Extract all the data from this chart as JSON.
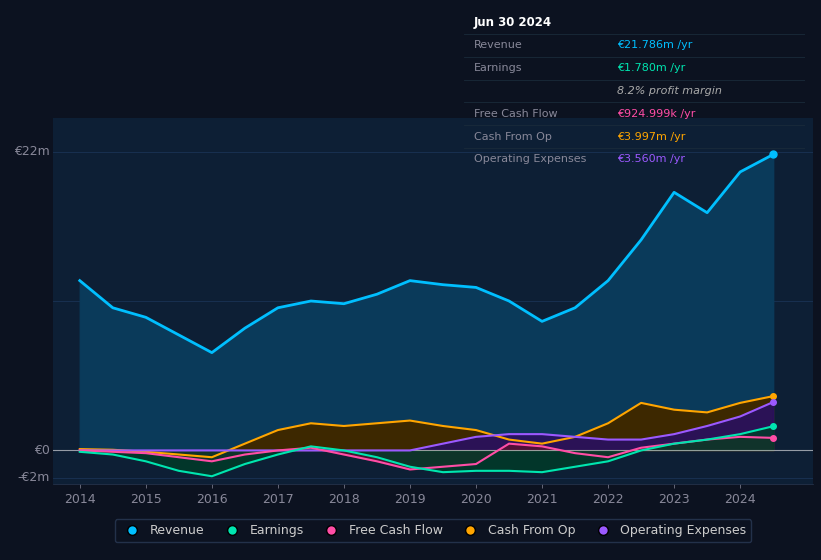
{
  "bg_color": "#0c1220",
  "plot_bg_color": "#0d1f35",
  "grid_color": "#1e3a5f",
  "zero_line_color": "#cccccc",
  "years": [
    2014,
    2014.5,
    2015,
    2015.5,
    2016,
    2016.5,
    2017,
    2017.5,
    2018,
    2018.5,
    2019,
    2019.5,
    2020,
    2020.5,
    2021,
    2021.5,
    2022,
    2022.5,
    2023,
    2023.5,
    2024,
    2024.5
  ],
  "revenue": [
    12.5,
    10.5,
    9.8,
    8.5,
    7.2,
    9.0,
    10.5,
    11.0,
    10.8,
    11.5,
    12.5,
    12.2,
    12.0,
    11.0,
    9.5,
    10.5,
    12.5,
    15.5,
    19.0,
    17.5,
    20.5,
    21.786
  ],
  "earnings": [
    -0.1,
    -0.3,
    -0.8,
    -1.5,
    -1.9,
    -1.0,
    -0.3,
    0.3,
    0.0,
    -0.5,
    -1.2,
    -1.6,
    -1.5,
    -1.5,
    -1.6,
    -1.2,
    -0.8,
    0.0,
    0.5,
    0.8,
    1.2,
    1.78
  ],
  "free_cash_flow": [
    0.0,
    -0.1,
    -0.2,
    -0.5,
    -0.8,
    -0.3,
    0.0,
    0.2,
    -0.3,
    -0.8,
    -1.4,
    -1.2,
    -1.0,
    0.5,
    0.3,
    -0.2,
    -0.5,
    0.2,
    0.5,
    0.8,
    1.0,
    0.925
  ],
  "cash_from_op": [
    0.1,
    0.05,
    -0.1,
    -0.3,
    -0.5,
    0.5,
    1.5,
    2.0,
    1.8,
    2.0,
    2.2,
    1.8,
    1.5,
    0.8,
    0.5,
    1.0,
    2.0,
    3.5,
    3.0,
    2.8,
    3.5,
    3.997
  ],
  "operating_expenses": [
    0.0,
    0.0,
    0.0,
    0.0,
    0.0,
    0.0,
    0.0,
    0.0,
    0.0,
    0.0,
    0.0,
    0.5,
    1.0,
    1.2,
    1.2,
    1.0,
    0.8,
    0.8,
    1.2,
    1.8,
    2.5,
    3.56
  ],
  "revenue_color": "#00bfff",
  "revenue_fill_color": "#0a3a5a",
  "earnings_color": "#00e5b0",
  "free_cash_flow_color": "#ff4da6",
  "cash_from_op_color": "#ffa500",
  "operating_expenses_color": "#9b59ff",
  "ylim_min": -2.5,
  "ylim_max": 24.5,
  "xlim_min": 2013.6,
  "xlim_max": 2025.1,
  "ylabel_22m": "€22m",
  "ylabel_0": "€0",
  "ylabel_neg2m": "-€2m",
  "xtick_labels": [
    "2014",
    "2015",
    "2016",
    "2017",
    "2018",
    "2019",
    "2020",
    "2021",
    "2022",
    "2023",
    "2024"
  ],
  "xtick_values": [
    2014,
    2015,
    2016,
    2017,
    2018,
    2019,
    2020,
    2021,
    2022,
    2023,
    2024
  ],
  "tooltip_date": "Jun 30 2024",
  "tooltip_revenue_label": "Revenue",
  "tooltip_revenue_value": "€21.786m /yr",
  "tooltip_revenue_color": "#00bfff",
  "tooltip_earnings_label": "Earnings",
  "tooltip_earnings_value": "€1.780m /yr",
  "tooltip_earnings_color": "#00e5b0",
  "tooltip_margin_text": "8.2% profit margin",
  "tooltip_fcf_label": "Free Cash Flow",
  "tooltip_fcf_value": "€924.999k /yr",
  "tooltip_fcf_color": "#ff4da6",
  "tooltip_cfop_label": "Cash From Op",
  "tooltip_cfop_value": "€3.997m /yr",
  "tooltip_cfop_color": "#ffa500",
  "tooltip_opex_label": "Operating Expenses",
  "tooltip_opex_value": "€3.560m /yr",
  "tooltip_opex_color": "#9b59ff",
  "legend_items": [
    {
      "label": "Revenue",
      "color": "#00bfff"
    },
    {
      "label": "Earnings",
      "color": "#00e5b0"
    },
    {
      "label": "Free Cash Flow",
      "color": "#ff4da6"
    },
    {
      "label": "Cash From Op",
      "color": "#ffa500"
    },
    {
      "label": "Operating Expenses",
      "color": "#9b59ff"
    }
  ]
}
